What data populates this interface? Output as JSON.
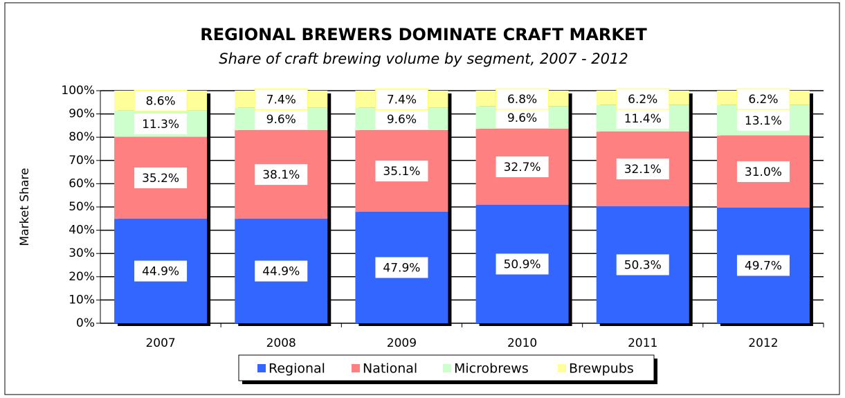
{
  "chart_data": {
    "type": "stacked_bar",
    "title": "REGIONAL BREWERS DOMINATE CRAFT MARKET",
    "subtitle": "Share of craft brewing volume by segment, 2007 - 2012",
    "y_label": "Market Share",
    "categories": [
      "2007",
      "2008",
      "2009",
      "2010",
      "2011",
      "2012"
    ],
    "series": [
      {
        "name": "Regional",
        "color": "#3366ff",
        "values": [
          44.9,
          44.9,
          47.9,
          50.9,
          50.3,
          49.7
        ],
        "value_labels": [
          "44.9%",
          "44.9%",
          "47.9%",
          "50.9%",
          "50.3%",
          "49.7%"
        ]
      },
      {
        "name": "National",
        "color": "#ff8080",
        "values": [
          35.2,
          38.1,
          35.1,
          32.7,
          32.1,
          31.0
        ],
        "value_labels": [
          "35.2%",
          "38.1%",
          "35.1%",
          "32.7%",
          "32.1%",
          "31.0%"
        ]
      },
      {
        "name": "Microbrews",
        "color": "#ccffcc",
        "values": [
          11.3,
          9.6,
          9.6,
          9.6,
          11.4,
          13.1
        ],
        "value_labels": [
          "11.3%",
          "9.6%",
          "9.6%",
          "9.6%",
          "11.4%",
          "13.1%"
        ]
      },
      {
        "name": "Brewpubs",
        "color": "#ffff99",
        "values": [
          8.6,
          7.4,
          7.4,
          6.8,
          6.2,
          6.2
        ],
        "value_labels": [
          "8.6%",
          "7.4%",
          "7.4%",
          "6.8%",
          "6.2%",
          "6.2%"
        ]
      }
    ],
    "ylim": [
      0,
      100
    ],
    "yticks": [
      {
        "value": 0,
        "label": "0%"
      },
      {
        "value": 10,
        "label": "10%"
      },
      {
        "value": 20,
        "label": "20%"
      },
      {
        "value": 30,
        "label": "30%"
      },
      {
        "value": 40,
        "label": "40%"
      },
      {
        "value": 50,
        "label": "50%"
      },
      {
        "value": 60,
        "label": "60%"
      },
      {
        "value": 70,
        "label": "70%"
      },
      {
        "value": 80,
        "label": "80%"
      },
      {
        "value": 90,
        "label": "90%"
      },
      {
        "value": 100,
        "label": "100%"
      }
    ],
    "grid": true,
    "legend": "bottom"
  }
}
